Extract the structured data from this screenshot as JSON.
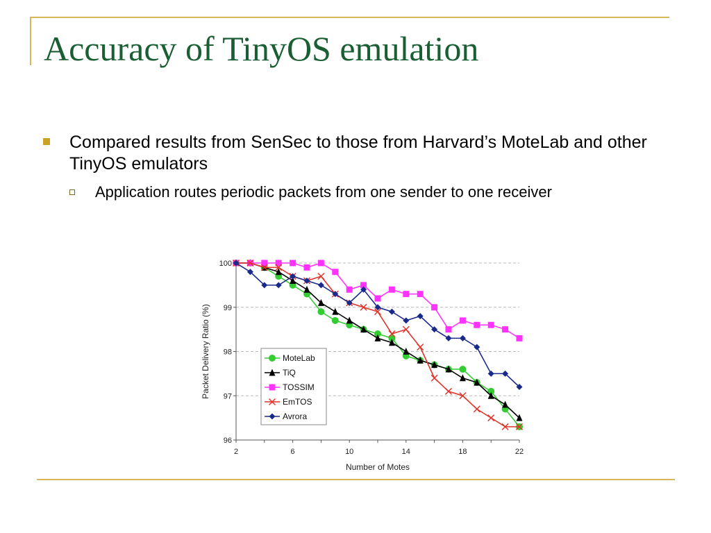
{
  "slide": {
    "title": "Accuracy of TinyOS emulation",
    "bullet_1": "Compared results from SenSec to those from Harvard’s MoteLab and other TinyOS emulators",
    "bullet_2": "Application routes periodic packets from one sender to one receiver"
  },
  "colors": {
    "title": "#1a5e33",
    "frame": "#d6b656",
    "bullet": "#c9a227"
  },
  "chart_data": {
    "type": "line",
    "xlabel": "Number of Motes",
    "ylabel": "Packet Delivery Ratio (%)",
    "xlim": [
      2,
      22
    ],
    "ylim": [
      96,
      100
    ],
    "x_ticks": [
      2,
      6,
      10,
      14,
      18,
      22
    ],
    "y_ticks": [
      96,
      97,
      98,
      99,
      100
    ],
    "grid": "horizontal dashed",
    "legend_position": "bottom-left",
    "x": [
      2,
      3,
      4,
      5,
      6,
      7,
      8,
      9,
      10,
      11,
      12,
      13,
      14,
      15,
      16,
      17,
      18,
      19,
      20,
      21,
      22
    ],
    "series": [
      {
        "name": "MoteLab",
        "color": "#33cc33",
        "marker": "circle",
        "values": [
          100,
          100,
          99.9,
          99.7,
          99.5,
          99.3,
          98.9,
          98.7,
          98.6,
          98.5,
          98.4,
          98.3,
          97.9,
          97.8,
          97.7,
          97.6,
          97.6,
          97.3,
          97.1,
          96.7,
          96.3
        ]
      },
      {
        "name": "TiQ",
        "color": "#000000",
        "marker": "triangle",
        "values": [
          100,
          100,
          99.9,
          99.8,
          99.6,
          99.4,
          99.1,
          98.9,
          98.7,
          98.5,
          98.3,
          98.2,
          98.0,
          97.8,
          97.7,
          97.6,
          97.4,
          97.3,
          97.0,
          96.8,
          96.5
        ]
      },
      {
        "name": "TOSSIM",
        "color": "#ff33ff",
        "marker": "square",
        "values": [
          100,
          100,
          100,
          100,
          100,
          99.9,
          100,
          99.8,
          99.4,
          99.5,
          99.2,
          99.4,
          99.3,
          99.3,
          99.0,
          98.5,
          98.7,
          98.6,
          98.6,
          98.5,
          98.3
        ]
      },
      {
        "name": "EmTOS",
        "color": "#e0342a",
        "marker": "x",
        "values": [
          100,
          100,
          99.9,
          99.9,
          99.7,
          99.6,
          99.7,
          99.3,
          99.1,
          99.0,
          98.9,
          98.4,
          98.5,
          98.1,
          97.4,
          97.1,
          97.0,
          96.7,
          96.5,
          96.3,
          96.3
        ]
      },
      {
        "name": "Avrora",
        "color": "#1a2a8c",
        "marker": "diamond",
        "values": [
          100,
          99.8,
          99.5,
          99.5,
          99.7,
          99.6,
          99.5,
          99.3,
          99.1,
          99.4,
          99.0,
          98.9,
          98.7,
          98.8,
          98.5,
          98.3,
          98.3,
          98.1,
          97.5,
          97.5,
          97.2
        ]
      }
    ]
  }
}
